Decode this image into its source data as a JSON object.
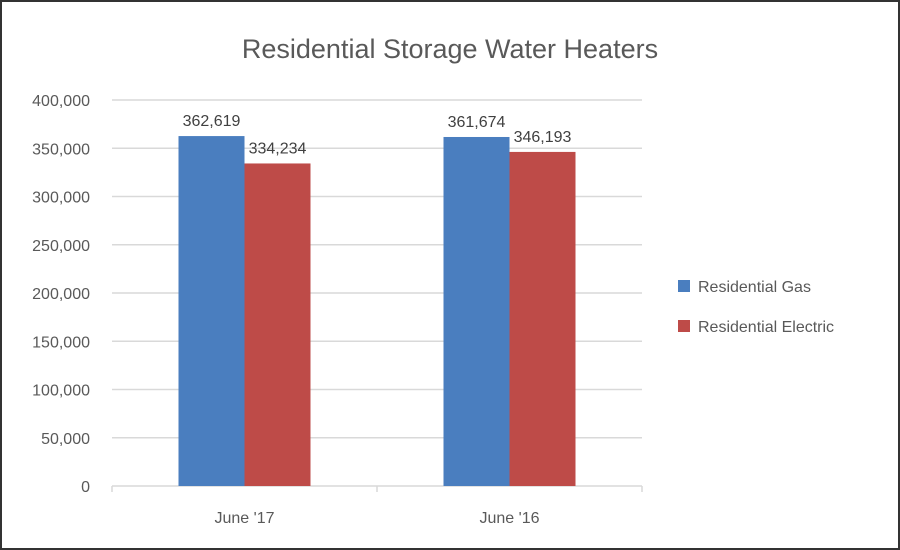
{
  "chart_data": {
    "type": "bar",
    "title": "Residential Storage Water Heaters",
    "categories": [
      "June '17",
      "June '16"
    ],
    "series": [
      {
        "name": "Residential Gas",
        "values": [
          362619,
          361674
        ],
        "color": "#4a7ebf"
      },
      {
        "name": "Residential Electric",
        "values": [
          334234,
          346193
        ],
        "color": "#be4b48"
      }
    ],
    "data_labels": [
      [
        "362,619",
        "361,674"
      ],
      [
        "334,234",
        "346,193"
      ]
    ],
    "ylim": [
      0,
      400000
    ],
    "yticks": [
      0,
      50000,
      100000,
      150000,
      200000,
      250000,
      300000,
      350000,
      400000
    ],
    "ytick_labels": [
      "0",
      "50,000",
      "100,000",
      "150,000",
      "200,000",
      "250,000",
      "300,000",
      "350,000",
      "400,000"
    ],
    "grid": true,
    "legend_position": "right",
    "xlabel": "",
    "ylabel": ""
  }
}
